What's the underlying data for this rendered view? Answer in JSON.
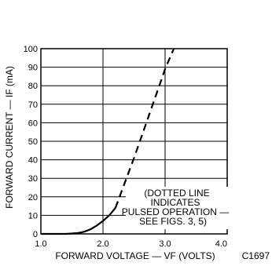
{
  "chart_data": {
    "type": "line",
    "xlabel": "FORWARD VOLTAGE — VF (VOLTS)",
    "ylabel": "FORWARD CURRENT — IF (mA)",
    "xlim": [
      1.0,
      4.0
    ],
    "ylim": [
      0,
      100
    ],
    "x_ticks": [
      "1.0",
      "2.0",
      "3.0",
      "4.0"
    ],
    "y_ticks": [
      "0",
      "10",
      "20",
      "30",
      "40",
      "50",
      "60",
      "70",
      "80",
      "90",
      "100"
    ],
    "grid": true,
    "figure_code": "C1697",
    "annotation": [
      "(DOTTED LINE",
      "INDICATES",
      "PULSED OPERATION —",
      "SEE FIGS. 3, 5)"
    ],
    "series": [
      {
        "style": "solid",
        "x": [
          1.0,
          1.4,
          1.5,
          1.6,
          1.7,
          1.8,
          1.9,
          2.0,
          2.1,
          2.2
        ],
        "y": [
          0,
          0,
          0.2,
          0.5,
          1.2,
          2.5,
          4.5,
          7,
          10,
          14
        ]
      },
      {
        "style": "dashed",
        "x": [
          2.2,
          2.5,
          2.75,
          3.0,
          3.14
        ],
        "y": [
          14,
          41,
          65,
          89,
          100
        ]
      }
    ]
  }
}
